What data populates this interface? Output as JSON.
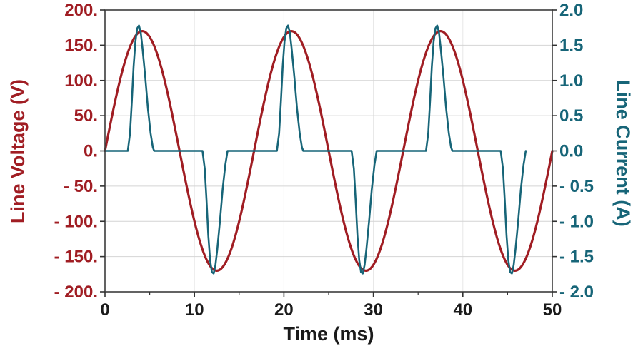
{
  "chart_data": {
    "type": "line",
    "title": "",
    "xlabel": "Time (ms)",
    "ylabel_left": "Line Voltage (V)",
    "ylabel_right": "Line Current (A)",
    "xlim": [
      0,
      50
    ],
    "x_ticks": {
      "values": [
        0,
        10,
        20,
        30,
        40,
        50
      ],
      "labels": [
        "0",
        "10",
        "20",
        "30",
        "40",
        "50"
      ],
      "minor_step": 5
    },
    "left_axis": {
      "lim": [
        -200,
        200
      ],
      "tick_values": [
        200,
        150,
        100,
        50,
        0,
        -50,
        -100,
        -150,
        -200
      ],
      "tick_labels": [
        "200.",
        "150.",
        "100.",
        "50.",
        "0.",
        "- 50.",
        "- 100.",
        "- 150.",
        "- 200."
      ],
      "color": "#a01d23"
    },
    "right_axis": {
      "lim": [
        -2,
        2
      ],
      "tick_values": [
        2,
        1.5,
        1,
        0.5,
        0,
        -0.5,
        -1,
        -1.5,
        -2
      ],
      "tick_labels": [
        "2.0",
        "1.5",
        "1.0",
        "0.5",
        "0.0",
        "- 0.5",
        "- 1.0",
        "- 1.5",
        "- 2.0"
      ],
      "color": "#176578"
    },
    "grid": {
      "show_horizontal": true,
      "show_vertical": true,
      "h_color": "#d4d4d4",
      "v_color": "#e6e6e6"
    },
    "frame_color": "#3c3c3c",
    "tick_color": "#333333",
    "x_label_color": "#1a1a1a",
    "series": [
      {
        "name": "line-voltage",
        "axis": "left",
        "color": "#a01d23",
        "width": 3.2,
        "waveform": "sine",
        "amplitude": 170,
        "period_ms": 16.6667,
        "phase_deg": 0
      },
      {
        "name": "line-current",
        "axis": "right",
        "color": "#176578",
        "width": 2.6,
        "waveform": "periodic-points",
        "period_ms": 16.6667,
        "periods": 3,
        "period_points": [
          [
            0,
            0
          ],
          [
            2.55,
            0
          ],
          [
            2.8,
            0.25
          ],
          [
            3.0,
            0.7
          ],
          [
            3.2,
            1.2
          ],
          [
            3.4,
            1.55
          ],
          [
            3.6,
            1.74
          ],
          [
            3.8,
            1.78
          ],
          [
            4.0,
            1.68
          ],
          [
            4.2,
            1.45
          ],
          [
            4.5,
            1.05
          ],
          [
            4.8,
            0.6
          ],
          [
            5.1,
            0.25
          ],
          [
            5.35,
            0.05
          ],
          [
            5.5,
            0
          ],
          [
            10.9,
            0
          ],
          [
            11.15,
            -0.25
          ],
          [
            11.35,
            -0.7
          ],
          [
            11.55,
            -1.2
          ],
          [
            11.75,
            -1.55
          ],
          [
            11.95,
            -1.72
          ],
          [
            12.15,
            -1.74
          ],
          [
            12.35,
            -1.62
          ],
          [
            12.55,
            -1.4
          ],
          [
            12.85,
            -1.0
          ],
          [
            13.15,
            -0.55
          ],
          [
            13.45,
            -0.2
          ],
          [
            13.7,
            0
          ],
          [
            16.6667,
            0
          ]
        ]
      }
    ]
  }
}
